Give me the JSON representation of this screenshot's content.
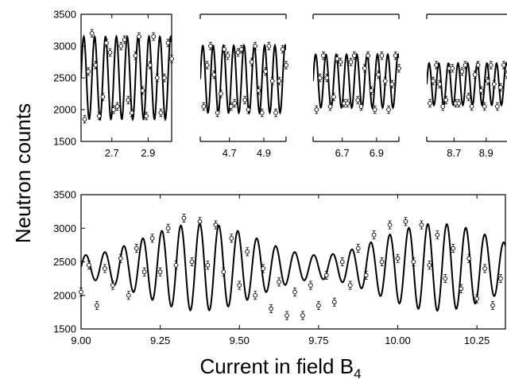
{
  "figure": {
    "ylabel": "Neutron counts",
    "xlabel_main": "Current in field B",
    "xlabel_sub": "4"
  },
  "chart_data": [
    {
      "type": "scatter",
      "panel": "top-1",
      "x": [
        2.55,
        2.57,
        2.59,
        2.61,
        2.63,
        2.65,
        2.67,
        2.69,
        2.71,
        2.73,
        2.75,
        2.77,
        2.79,
        2.81,
        2.83,
        2.85,
        2.87,
        2.89,
        2.91,
        2.93,
        2.95,
        2.97,
        2.99,
        3.01,
        3.03
      ],
      "series": [
        {
          "name": "",
          "role": "data",
          "y": [
            1850,
            2600,
            3200,
            2700,
            1900,
            2200,
            3050,
            2900,
            2000,
            2050,
            3000,
            3100,
            2150,
            1950,
            2850,
            3150,
            2300,
            1900,
            2700,
            3150,
            2500,
            1950,
            2500,
            3050,
            2800
          ]
        },
        {
          "name": "",
          "role": "fit",
          "period": 0.06,
          "mean": 2500,
          "amplitude": 650
        }
      ],
      "xlim": [
        2.53,
        3.03
      ],
      "ylim": [
        1500,
        3500
      ],
      "xticks": [
        2.7,
        2.9
      ],
      "xticklabels": [
        "2.7",
        "2.9"
      ],
      "yticks": [
        1500,
        2000,
        2500,
        3000,
        3500
      ],
      "yticklabels": [
        "1500",
        "2000",
        "2500",
        "3000",
        "3500"
      ]
    },
    {
      "type": "scatter",
      "panel": "top-2",
      "x": [
        4.55,
        4.57,
        4.59,
        4.61,
        4.63,
        4.65,
        4.67,
        4.69,
        4.71,
        4.73,
        4.75,
        4.77,
        4.79,
        4.81,
        4.83,
        4.85,
        4.87,
        4.89,
        4.91,
        4.93,
        4.95,
        4.97,
        4.99,
        5.01,
        5.03
      ],
      "series": [
        {
          "name": "",
          "role": "data",
          "y": [
            2050,
            2700,
            3000,
            2550,
            1950,
            2250,
            2950,
            2850,
            2050,
            2100,
            2900,
            2950,
            2150,
            2000,
            2750,
            3000,
            2300,
            1950,
            2600,
            3000,
            2450,
            1950,
            2450,
            2950,
            2700
          ]
        },
        {
          "name": "",
          "role": "fit",
          "period": 0.06,
          "mean": 2480,
          "amplitude": 530
        }
      ],
      "xlim": [
        4.53,
        5.03
      ],
      "ylim": [
        1500,
        3500
      ],
      "xticks": [
        4.7,
        4.9
      ],
      "xticklabels": [
        "4.7",
        "4.9"
      ]
    },
    {
      "type": "scatter",
      "panel": "top-3",
      "x": [
        6.55,
        6.57,
        6.59,
        6.61,
        6.63,
        6.65,
        6.67,
        6.69,
        6.71,
        6.73,
        6.75,
        6.77,
        6.79,
        6.81,
        6.83,
        6.85,
        6.87,
        6.89,
        6.91,
        6.93,
        6.95,
        6.97,
        6.99,
        7.01,
        7.03
      ],
      "series": [
        {
          "name": "",
          "role": "data",
          "y": [
            2000,
            2500,
            2850,
            2500,
            2050,
            2200,
            2800,
            2750,
            2100,
            2100,
            2750,
            2850,
            2150,
            2050,
            2650,
            2850,
            2300,
            2000,
            2550,
            2850,
            2450,
            2000,
            2400,
            2850,
            2650
          ]
        },
        {
          "name": "",
          "role": "fit",
          "period": 0.06,
          "mean": 2450,
          "amplitude": 420
        }
      ],
      "xlim": [
        6.53,
        7.03
      ],
      "ylim": [
        1500,
        3500
      ],
      "xticks": [
        6.7,
        6.9
      ],
      "xticklabels": [
        "6.7",
        "6.9"
      ]
    },
    {
      "type": "scatter",
      "panel": "top-4",
      "x": [
        8.55,
        8.57,
        8.59,
        8.61,
        8.63,
        8.65,
        8.67,
        8.69,
        8.71,
        8.73,
        8.75,
        8.77,
        8.79,
        8.81,
        8.83,
        8.85,
        8.87,
        8.89,
        8.91,
        8.93,
        8.95,
        8.97,
        8.99,
        9.01,
        9.03
      ],
      "series": [
        {
          "name": "",
          "role": "data",
          "y": [
            2100,
            2450,
            2700,
            2400,
            2050,
            2150,
            2650,
            2650,
            2100,
            2100,
            2600,
            2700,
            2200,
            2050,
            2550,
            2700,
            2300,
            2050,
            2450,
            2700,
            2400,
            2050,
            2350,
            2700,
            2550
          ]
        },
        {
          "name": "",
          "role": "fit",
          "period": 0.06,
          "mean": 2400,
          "amplitude": 330
        }
      ],
      "xlim": [
        8.53,
        9.03
      ],
      "ylim": [
        1500,
        3500
      ],
      "xticks": [
        8.7,
        8.9
      ],
      "xticklabels": [
        "8.7",
        "8.9"
      ]
    },
    {
      "type": "scatter",
      "panel": "bottom",
      "x": [
        9.0,
        9.025,
        9.05,
        9.075,
        9.1,
        9.125,
        9.15,
        9.175,
        9.2,
        9.225,
        9.25,
        9.275,
        9.3,
        9.325,
        9.35,
        9.375,
        9.4,
        9.425,
        9.45,
        9.475,
        9.5,
        9.525,
        9.55,
        9.575,
        9.6,
        9.625,
        9.65,
        9.675,
        9.7,
        9.725,
        9.75,
        9.775,
        9.8,
        9.825,
        9.85,
        9.875,
        9.9,
        9.925,
        9.95,
        9.975,
        10.0,
        10.025,
        10.05,
        10.075,
        10.1,
        10.125,
        10.15,
        10.175,
        10.2,
        10.225,
        10.25,
        10.275,
        10.3,
        10.325
      ],
      "series": [
        {
          "name": "",
          "role": "data",
          "y": [
            2050,
            2450,
            1850,
            2400,
            2150,
            2550,
            2000,
            2700,
            2350,
            2850,
            2350,
            3000,
            2450,
            3150,
            2500,
            3100,
            2450,
            3050,
            2350,
            2850,
            2150,
            2650,
            2000,
            2400,
            1800,
            2200,
            1700,
            2050,
            1700,
            2150,
            1850,
            2300,
            1900,
            2500,
            2150,
            2700,
            2300,
            2900,
            2500,
            3050,
            2550,
            3100,
            2500,
            3050,
            2450,
            2900,
            2250,
            2700,
            2100,
            2550,
            1950,
            2400,
            1850,
            2250
          ]
        },
        {
          "name": "",
          "role": "fit",
          "period": 0.06,
          "mean": 2420,
          "amplitude_range": [
            180,
            650
          ]
        }
      ],
      "xlim": [
        9.0,
        10.34
      ],
      "ylim": [
        1500,
        3500
      ],
      "xticks": [
        9.0,
        9.25,
        9.5,
        9.75,
        10.0,
        10.25
      ],
      "xticklabels": [
        "9.00",
        "9.25",
        "9.50",
        "9.75",
        "10.00",
        "10.25"
      ],
      "yticks": [
        1500,
        2000,
        2500,
        3000,
        3500
      ],
      "yticklabels": [
        "1500",
        "2000",
        "2500",
        "3000",
        "3500"
      ]
    }
  ]
}
